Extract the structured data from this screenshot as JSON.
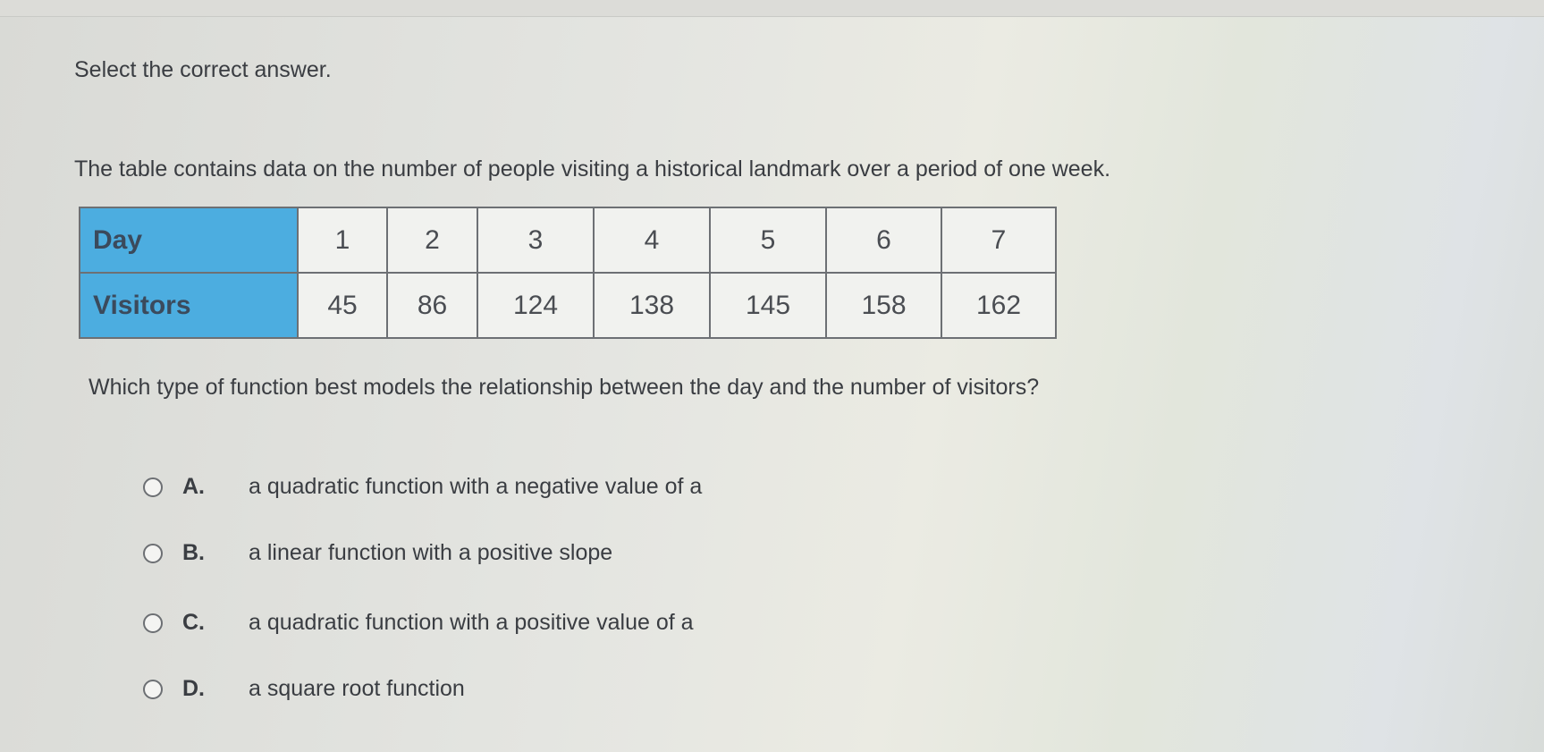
{
  "instruction": "Select the correct answer.",
  "stem": "The table contains data on the number of people visiting a historical landmark over a period of one week.",
  "table": {
    "row_headers": [
      "Day",
      "Visitors"
    ],
    "days": [
      "1",
      "2",
      "3",
      "4",
      "5",
      "6",
      "7"
    ],
    "visitors": [
      "45",
      "86",
      "124",
      "138",
      "145",
      "158",
      "162"
    ]
  },
  "question": "Which type of function best models the relationship between the day and the number of visitors?",
  "options": [
    {
      "letter": "A.",
      "text": "a quadratic function with a negative value of a"
    },
    {
      "letter": "B.",
      "text": "a linear function with a positive slope"
    },
    {
      "letter": "C.",
      "text": "a quadratic function with a positive value of a"
    },
    {
      "letter": "D.",
      "text": "a square root function"
    }
  ],
  "colors": {
    "header_cell": "#4cade0"
  }
}
